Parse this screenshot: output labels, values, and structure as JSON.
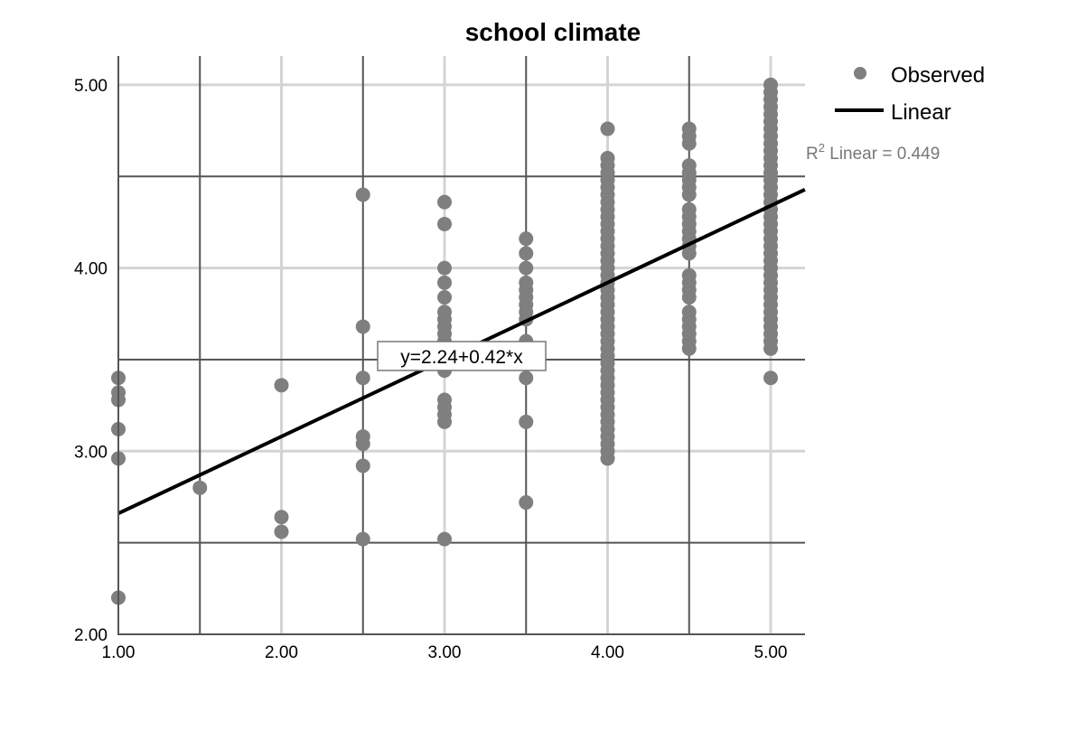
{
  "chart_data": {
    "type": "scatter",
    "title": "school climate",
    "xlabel": "",
    "ylabel": "",
    "xlim": [
      1.0,
      5.21
    ],
    "ylim": [
      2.0,
      5.16
    ],
    "x_ticks": [
      "1.00",
      "2.00",
      "3.00",
      "4.00",
      "5.00"
    ],
    "y_ticks": [
      "2.00",
      "3.00",
      "4.00",
      "5.00"
    ],
    "grid": true,
    "legend": {
      "placement": "top-right",
      "entries": [
        "Observed",
        "Linear"
      ]
    },
    "r2_label": {
      "prefix": "R",
      "sup": "2",
      "text": " Linear = 0.449"
    },
    "fit_line": {
      "intercept": 2.24,
      "slope": 0.42,
      "label": "y=2.24+0.42*x"
    },
    "colors": {
      "points": "#7f7f7f",
      "line": "#000000",
      "minor_grid": "#555555",
      "major_grid": "#d4d4d4"
    },
    "observed": [
      {
        "x": 1.0,
        "y": [
          3.4,
          3.32,
          3.28,
          3.12,
          2.96,
          2.2
        ]
      },
      {
        "x": 1.5,
        "y": [
          2.8
        ]
      },
      {
        "x": 2.0,
        "y": [
          3.36,
          2.64,
          2.56
        ]
      },
      {
        "x": 2.5,
        "y": [
          4.4,
          3.68,
          3.4,
          3.08,
          3.04,
          2.92,
          2.52
        ]
      },
      {
        "x": 3.0,
        "y": [
          4.36,
          4.24,
          4.0,
          3.92,
          3.84,
          3.76,
          3.72,
          3.68,
          3.64,
          3.6,
          3.44,
          3.28,
          3.24,
          3.2,
          3.16,
          2.52
        ]
      },
      {
        "x": 3.5,
        "y": [
          4.16,
          4.08,
          4.0,
          3.92,
          3.88,
          3.84,
          3.8,
          3.76,
          3.72,
          3.6,
          3.4,
          3.16,
          2.72
        ]
      },
      {
        "x": 4.0,
        "y": [
          2.96,
          3.0,
          3.04,
          3.08,
          3.12,
          3.16,
          3.2,
          3.24,
          3.28,
          3.32,
          3.36,
          3.4,
          3.44,
          3.48,
          3.52,
          3.56,
          3.6,
          3.64,
          3.68,
          3.72,
          3.76,
          3.8,
          3.84,
          3.88,
          3.92,
          3.96,
          4.0,
          4.04,
          4.08,
          4.12,
          4.16,
          4.2,
          4.24,
          4.28,
          4.32,
          4.36,
          4.4,
          4.44,
          4.48,
          4.52,
          4.56,
          4.6,
          4.76
        ]
      },
      {
        "x": 4.5,
        "y": [
          3.56,
          3.6,
          3.64,
          3.68,
          3.72,
          3.76,
          3.84,
          3.88,
          3.92,
          3.96,
          4.08,
          4.12,
          4.16,
          4.2,
          4.24,
          4.28,
          4.32,
          4.4,
          4.44,
          4.48,
          4.52,
          4.56,
          4.68,
          4.72,
          4.76
        ]
      },
      {
        "x": 5.0,
        "y": [
          3.4,
          3.56,
          3.6,
          3.64,
          3.68,
          3.72,
          3.76,
          3.8,
          3.84,
          3.88,
          3.92,
          3.96,
          4.0,
          4.04,
          4.08,
          4.12,
          4.16,
          4.2,
          4.24,
          4.28,
          4.32,
          4.36,
          4.4,
          4.44,
          4.48,
          4.52,
          4.56,
          4.6,
          4.64,
          4.68,
          4.72,
          4.76,
          4.8,
          4.84,
          4.88,
          4.92,
          4.96,
          5.0
        ]
      }
    ]
  }
}
